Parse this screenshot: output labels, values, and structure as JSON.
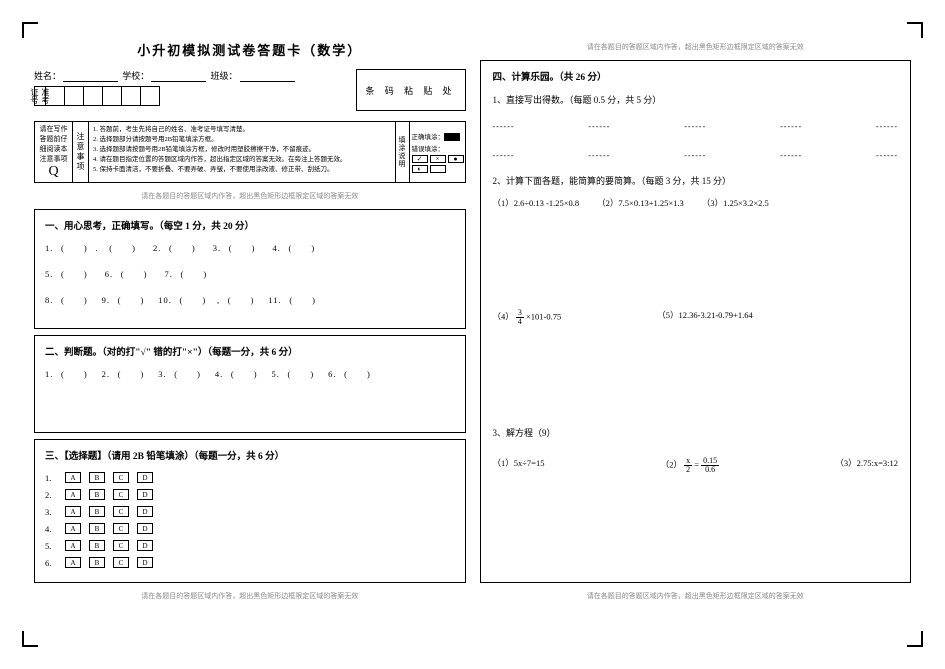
{
  "doc_title": "小升初模拟测试卷答题卡（数学）",
  "header": {
    "name_label": "姓名：",
    "school_label": "学校：",
    "class_label": "班级：",
    "id_label": "准考证号",
    "barcode_label": "条 码 粘 贴 处"
  },
  "instructions": {
    "left_top": "请在写作答题前仔细阅读本注意事项",
    "q": "Q",
    "vert_label": "注意事项",
    "lines": [
      "1. 答题前，考生先将自己的姓名、准考证号填写清楚。",
      "2. 选择题部分请按题号用2B铅笔填涂方框。",
      "3. 选择题部请按题号用2B铅笔填涂方框，修改时用塑胶擦擦干净，不留痕迹。",
      "4. 请在题目指定位置的答题区域内作答，超出指定区域的答案无效。在旁注上答题无效。",
      "5. 保持卡面清洁，不要折叠、不要弄破、弄皱，不要使用涂改液、修正带、刮纸刀。"
    ],
    "right_vert": "填涂说明",
    "correct_label": "正确填涂：",
    "wrong_label": "错误填涂："
  },
  "notice": "请在各题目的答题区域内作答，超出黑色矩形边框限定区域的答案无效",
  "sections": {
    "s1": {
      "title": "一、用心思考，正确填写。（每空 1 分，共 20 分）",
      "items": [
        "1.",
        "2.",
        "3.",
        "4.",
        "5.",
        "6.",
        "7.",
        "8.",
        "9.",
        "10.",
        "11."
      ]
    },
    "s2": {
      "title": "二、判断题。（对的打\"√\" 错的打\"×\"）（每题一分，共 6 分）",
      "items": [
        "1.",
        "2.",
        "3.",
        "4.",
        "5.",
        "6."
      ]
    },
    "s3": {
      "title": "三、【选择题】（请用 2B 铅笔填涂）（每题一分，共 6 分）",
      "options": [
        "A",
        "B",
        "C",
        "D"
      ],
      "count": 6
    },
    "s4": {
      "title": "四、计算乐园。（共 26 分）",
      "p1_title": "1、直接写出得数。（每题 0.5 分，共 5 分）",
      "p2_title": "2、计算下面各题，能简算的要简算。（每题 3 分，共 15 分）",
      "p2_items": [
        "（1）2.6÷0.13 -1.25×0.8",
        "（2）7.5×0.13+1.25×1.3",
        "（3）1.25×3.2×2.5"
      ],
      "p2_items_b": [
        "（4）",
        "（5）12.36-3.21-0.79+1.64"
      ],
      "frac_expr_num": "3",
      "frac_expr_den": "4",
      "frac_expr_tail": " ×101-0.75",
      "p3_title": "3、解方程（9）",
      "p3_items": [
        "（1）5x÷7=15",
        "（2）",
        "（3）2.75:x=3:12"
      ],
      "eq2_left_num": "x",
      "eq2_left_den": "2",
      "eq2_eq": "=",
      "eq2_right_num": "0.15",
      "eq2_right_den": "0.6"
    }
  }
}
